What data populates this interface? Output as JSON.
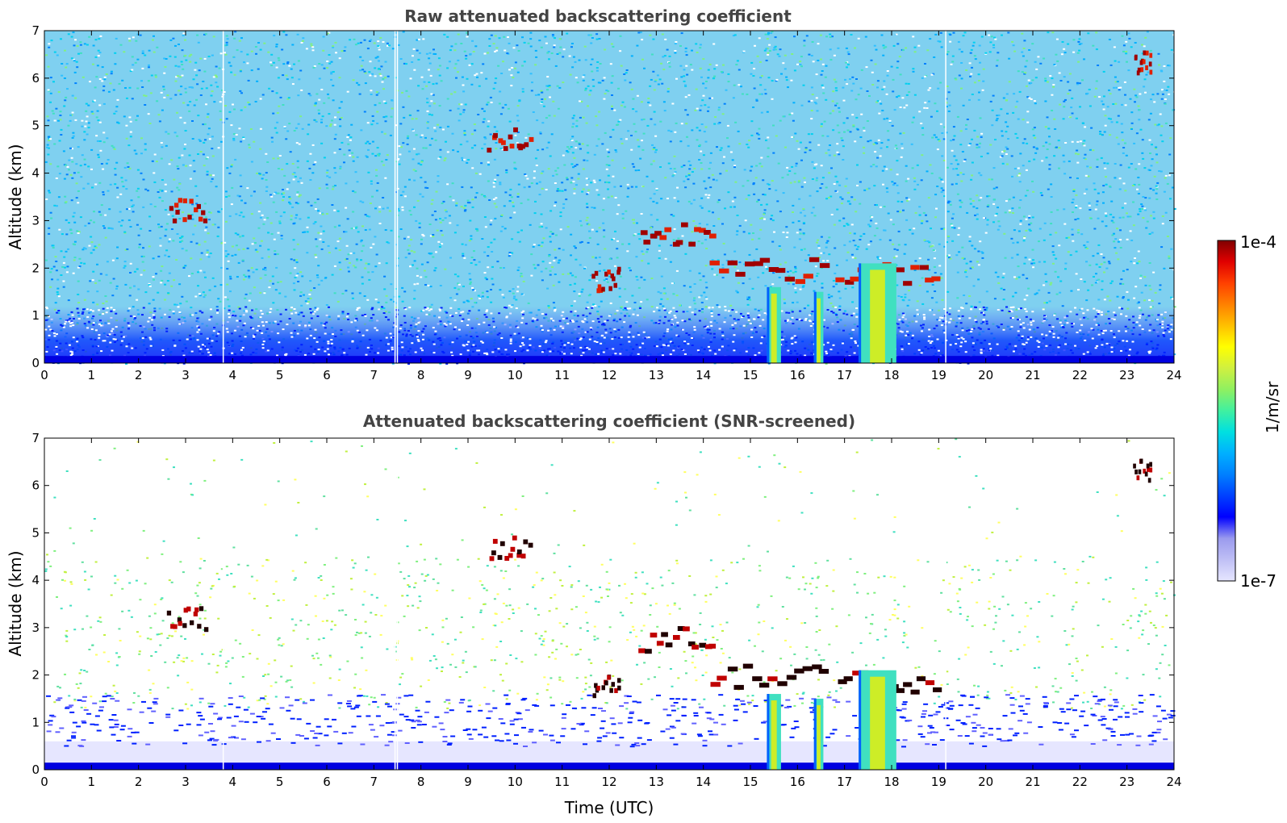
{
  "chart_data": [
    {
      "type": "heatmap",
      "title": "Raw attenuated backscattering coefficient",
      "xlabel": "",
      "ylabel": "Altitude (km)",
      "xlim": [
        0,
        24
      ],
      "ylim": [
        0,
        7
      ],
      "xticks": [
        "0",
        "1",
        "2",
        "3",
        "4",
        "5",
        "6",
        "7",
        "8",
        "9",
        "10",
        "11",
        "12",
        "13",
        "14",
        "15",
        "16",
        "17",
        "18",
        "19",
        "20",
        "21",
        "22",
        "23",
        "24"
      ],
      "yticks": [
        "0",
        "1",
        "2",
        "3",
        "4",
        "5",
        "6",
        "7"
      ],
      "features": [
        {
          "x": [
            2.6,
            3.4
          ],
          "y": 3.25,
          "level": "high"
        },
        {
          "x": [
            9.4,
            10.3
          ],
          "y": 4.75,
          "level": "high"
        },
        {
          "x": [
            11.6,
            12.2
          ],
          "y": 1.8,
          "level": "high"
        },
        {
          "x": [
            12.6,
            14.2
          ],
          "y": 2.8,
          "level": "high"
        },
        {
          "x": [
            14.1,
            16.6
          ],
          "y": 2.0,
          "level": "high"
        },
        {
          "x": [
            16.8,
            19.0
          ],
          "y": 1.9,
          "level": "high"
        },
        {
          "x": [
            23.1,
            23.5
          ],
          "y": 6.35,
          "level": "high"
        },
        {
          "x": [
            15.35,
            15.65
          ],
          "y": [
            0,
            1.6
          ],
          "level": "mid"
        },
        {
          "x": [
            16.35,
            16.55
          ],
          "y": [
            0,
            1.5
          ],
          "level": "mid"
        },
        {
          "x": [
            17.3,
            18.1
          ],
          "y": [
            0,
            2.1
          ],
          "level": "mid"
        }
      ]
    },
    {
      "type": "heatmap",
      "title": "Attenuated backscattering coefficient (SNR-screened)",
      "xlabel": "Time (UTC)",
      "ylabel": "Altitude (km)",
      "xlim": [
        0,
        24
      ],
      "ylim": [
        0,
        7
      ],
      "xticks": [
        "0",
        "1",
        "2",
        "3",
        "4",
        "5",
        "6",
        "7",
        "8",
        "9",
        "10",
        "11",
        "12",
        "13",
        "14",
        "15",
        "16",
        "17",
        "18",
        "19",
        "20",
        "21",
        "22",
        "23",
        "24"
      ],
      "yticks": [
        "0",
        "1",
        "2",
        "3",
        "4",
        "5",
        "6",
        "7"
      ],
      "features": [
        {
          "x": [
            2.6,
            3.4
          ],
          "y": 3.25,
          "level": "high"
        },
        {
          "x": [
            9.4,
            10.3
          ],
          "y": 4.75,
          "level": "high"
        },
        {
          "x": [
            11.6,
            12.2
          ],
          "y": 1.8,
          "level": "high"
        },
        {
          "x": [
            12.6,
            14.2
          ],
          "y": 2.8,
          "level": "high"
        },
        {
          "x": [
            14.1,
            16.6
          ],
          "y": 2.0,
          "level": "high"
        },
        {
          "x": [
            16.8,
            19.0
          ],
          "y": 1.9,
          "level": "high"
        },
        {
          "x": [
            23.1,
            23.5
          ],
          "y": 6.35,
          "level": "high"
        },
        {
          "x": [
            15.35,
            15.65
          ],
          "y": [
            0,
            1.6
          ],
          "level": "mid"
        },
        {
          "x": [
            16.35,
            16.55
          ],
          "y": [
            0,
            1.5
          ],
          "level": "mid"
        },
        {
          "x": [
            17.3,
            18.1
          ],
          "y": [
            0,
            2.1
          ],
          "level": "mid"
        }
      ]
    }
  ],
  "colorbar": {
    "max_label": "1e-4",
    "min_label": "1e-7",
    "unit_label": "1/m/sr",
    "colors": [
      "#e6e6ff",
      "#bfbff5",
      "#9a9aee",
      "#0000ff",
      "#0040ff",
      "#0080ff",
      "#00b0ff",
      "#00e0e0",
      "#40f0a0",
      "#90f060",
      "#d0f040",
      "#ffff00",
      "#ffc000",
      "#ff8000",
      "#ff4000",
      "#e00000",
      "#800000"
    ]
  }
}
